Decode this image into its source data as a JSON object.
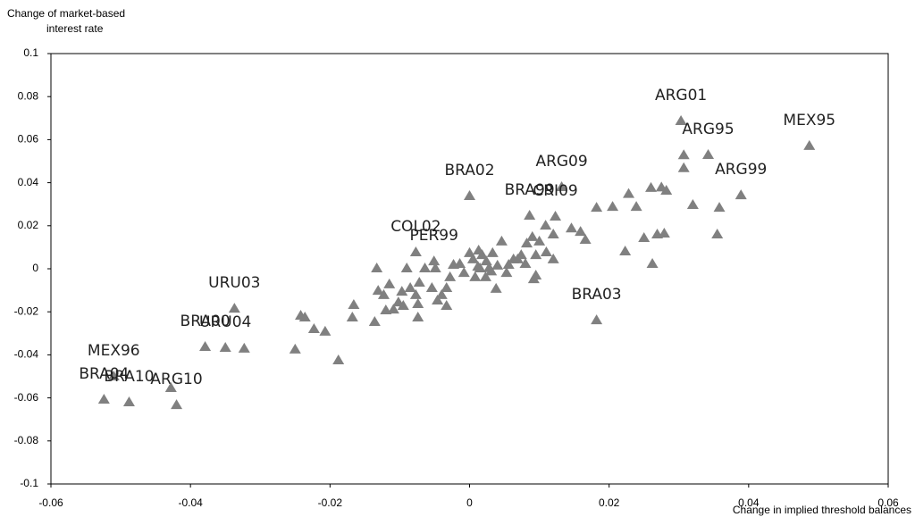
{
  "chart_data": {
    "type": "scatter",
    "ylabel": [
      "Change of market-based",
      "interest rate"
    ],
    "xlabel": "Change in implied threshold balances",
    "xlim": [
      -0.06,
      0.06
    ],
    "xticks": [
      -0.06,
      -0.04,
      -0.02,
      0,
      0.02,
      0.04,
      0.06
    ],
    "ylim": [
      -0.1,
      0.1
    ],
    "yticks": [
      -0.1,
      -0.08,
      -0.06,
      -0.04,
      -0.02,
      0,
      0.02,
      0.04,
      0.06,
      0.08,
      0.1
    ],
    "grid": false,
    "x": [
      0.0303,
      0.0487,
      0,
      0.0389,
      -0.0077,
      -0.0051,
      -0.0337,
      -0.0379,
      -0.035,
      -0.051,
      -0.0524,
      -0.0488,
      -0.042,
      0.0182,
      0.0132,
      0.0342,
      0.0123,
      0.0086,
      0.0307,
      0.0307,
      0.0275,
      0.0282,
      0.026,
      0.0228,
      0.0239,
      0.0205,
      0.0182,
      0.032,
      0.0358,
      0.0355,
      0.0279,
      0.0269,
      0.025,
      0.0223,
      0.0262,
      0.0159,
      0.0166,
      0.0146,
      0.0109,
      0.012,
      0.01,
      0.009,
      0.0082,
      0.0095,
      0.011,
      0.012,
      0.0074,
      0.0069,
      0.0056,
      0.0046,
      0.0033,
      0.0038,
      0.0095,
      0.0092,
      0.0063,
      0.0024,
      0.0018,
      0.0013,
      0.0005,
      0,
      0.0015,
      0.0023,
      0.0008,
      -0.0008,
      -0.0014,
      -0.0023,
      -0.0028,
      -0.0033,
      -0.004,
      -0.0033,
      -0.0046,
      -0.0054,
      -0.0049,
      -0.0064,
      -0.0072,
      -0.0077,
      -0.0085,
      -0.009,
      -0.0097,
      -0.0102,
      -0.0095,
      -0.0074,
      -0.0074,
      -0.0109,
      -0.012,
      -0.0123,
      -0.0131,
      -0.0133,
      -0.0115,
      -0.0166,
      -0.0168,
      -0.0136,
      -0.0188,
      -0.0207,
      -0.0223,
      -0.0242,
      -0.0236,
      -0.025,
      -0.0323,
      -0.0428,
      0.004,
      0.0053,
      0.0031,
      0.0012,
      0.0028,
      0.008
    ],
    "series": [
      {
        "name": "Countries",
        "color": "#808080",
        "values": [
          0.0689,
          0.0573,
          0.034,
          0.0344,
          0.0079,
          0.0037,
          -0.0183,
          -0.0361,
          -0.0365,
          -0.0498,
          -0.0606,
          -0.0618,
          -0.0631,
          -0.0237,
          0.0382,
          0.0531,
          0.0245,
          0.0249,
          0.053,
          0.047,
          0.038,
          0.0365,
          0.0378,
          0.035,
          0.029,
          0.029,
          0.0286,
          0.0299,
          0.0286,
          0.0162,
          0.0166,
          0.0162,
          0.0145,
          0.0083,
          0.0025,
          0.0174,
          0.0137,
          0.019,
          0.0203,
          0.0162,
          0.0129,
          0.015,
          0.012,
          0.0066,
          0.0079,
          0.0046,
          0.0066,
          0.0046,
          0.0021,
          0.0129,
          0.0075,
          -0.0091,
          -0.0029,
          -0.0046,
          0.0046,
          0.0037,
          0.0066,
          0.0087,
          0.0046,
          0.0075,
          0.0004,
          -0.0037,
          -0.0037,
          -0.0017,
          0.0025,
          0.0021,
          -0.0037,
          -0.0087,
          -0.012,
          -0.017,
          -0.0145,
          -0.0087,
          0.0004,
          0.0004,
          -0.0062,
          -0.012,
          -0.0087,
          0.0004,
          -0.0104,
          -0.0154,
          -0.017,
          -0.0224,
          -0.0162,
          -0.0187,
          -0.0191,
          -0.012,
          -0.01,
          0.0004,
          -0.007,
          -0.0166,
          -0.0224,
          -0.0245,
          -0.0423,
          -0.029,
          -0.0278,
          -0.0216,
          -0.0224,
          -0.0373,
          -0.0369,
          -0.0552,
          0.0017,
          -0.0017,
          -0.001,
          0.0012,
          0.0005,
          0.0025
        ]
      }
    ],
    "point_labels": [
      "ARG01",
      "MEX95",
      "BRA02",
      "ARG99",
      "COL02",
      "PER99",
      "URU03",
      "BRA00",
      "URU04",
      "MEX96",
      "BRA04",
      "BRA10",
      "ARG10",
      "BRA03",
      "ARG09",
      "ARG95",
      "CRI09",
      "BRA99",
      null,
      null,
      null,
      null,
      null,
      null,
      null,
      null,
      null,
      null,
      null,
      null,
      null,
      null,
      null,
      null,
      null,
      null,
      null,
      null,
      null,
      null,
      null,
      null,
      null,
      null,
      null,
      null,
      null,
      null,
      null,
      null,
      null,
      null,
      null,
      null,
      null,
      null,
      null,
      null,
      null,
      null,
      null,
      null,
      null,
      null,
      null,
      null,
      null,
      null,
      null,
      null,
      null,
      null,
      null,
      null,
      null,
      null,
      null,
      null,
      null,
      null,
      null,
      null,
      null,
      null,
      null,
      null,
      null,
      null,
      null,
      null,
      null,
      null,
      null,
      null,
      null,
      null,
      null,
      null,
      null,
      null,
      null,
      null
    ]
  }
}
